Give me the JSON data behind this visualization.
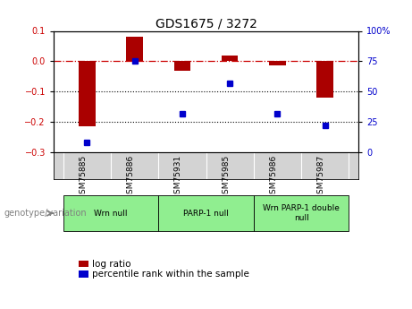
{
  "title": "GDS1675 / 3272",
  "samples": [
    "GSM75885",
    "GSM75886",
    "GSM75931",
    "GSM75985",
    "GSM75986",
    "GSM75987"
  ],
  "log_ratio": [
    -0.215,
    0.082,
    -0.03,
    0.018,
    -0.015,
    -0.12
  ],
  "percentile_rank": [
    8,
    75,
    32,
    57,
    32,
    22
  ],
  "groups": [
    {
      "label": "Wrn null",
      "start": 0,
      "end": 2,
      "color": "#90ee90"
    },
    {
      "label": "PARP-1 null",
      "start": 2,
      "end": 4,
      "color": "#90ee90"
    },
    {
      "label": "Wrn PARP-1 double\nnull",
      "start": 4,
      "end": 6,
      "color": "#90ee90"
    }
  ],
  "ylim_left": [
    -0.3,
    0.1
  ],
  "ylim_right": [
    0,
    100
  ],
  "yticks_left": [
    -0.3,
    -0.2,
    -0.1,
    0.0,
    0.1
  ],
  "yticks_right": [
    0,
    25,
    50,
    75,
    100
  ],
  "bar_color": "#aa0000",
  "dot_color": "#0000cc",
  "hline_color": "#cc0000",
  "dotted_line_color": "#000000",
  "bg_color": "#ffffff",
  "plot_bg": "#ffffff",
  "sample_box_color": "#d3d3d3",
  "legend_bar_label": "log ratio",
  "legend_dot_label": "percentile rank within the sample",
  "genotype_label": "genotype/variation"
}
